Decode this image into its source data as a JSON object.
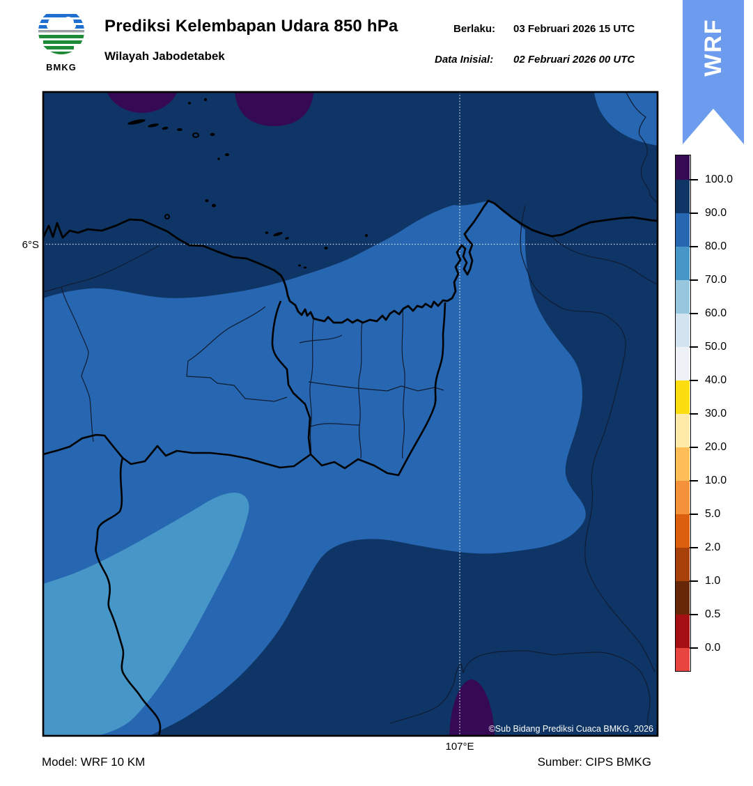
{
  "header": {
    "logo_text": "BMKG",
    "title": "Prediksi Kelembapan Udara 850 hPa",
    "subtitle": "Wilayah Jabodetabek",
    "valid_label": "Berlaku:",
    "valid_value": "03 Februari 2026 15 UTC",
    "init_label": "Data Inisial:",
    "init_value": "02 Februari 2026 00 UTC",
    "ribbon_label": "WRF"
  },
  "map": {
    "lat_tick": "6°S",
    "lon_tick": "107°E",
    "attribution": "©Sub Bidang Prediksi Cuaca BMKG, 2026"
  },
  "footer": {
    "model": "Model: WRF 10 KM",
    "source": "Sumber: CIPS BMKG"
  },
  "colors": {
    "purple": "#350953",
    "navy": "#0e3566",
    "blue": "#2766b0",
    "steel": "#4796c8",
    "ribbon": "#6d9bee",
    "logo_blue": "#1f6fd0",
    "logo_green": "#1e8a35",
    "frame": "#000000"
  },
  "colorbar": {
    "ticks": [
      "100.0",
      "90.0",
      "80.0",
      "70.0",
      "60.0",
      "50.0",
      "40.0",
      "30.0",
      "20.0",
      "10.0",
      "5.0",
      "2.0",
      "1.0",
      "0.5",
      "0.0"
    ],
    "segments": [
      "#350953",
      "#0e3566",
      "#2766b0",
      "#4796c8",
      "#97c6df",
      "#d3e3f0",
      "#eef1f6",
      "#fcdd10",
      "#ffeaa8",
      "#fdbe57",
      "#f5913b",
      "#dc5f0d",
      "#a84109",
      "#672807",
      "#a60f14",
      "#e84440"
    ]
  }
}
